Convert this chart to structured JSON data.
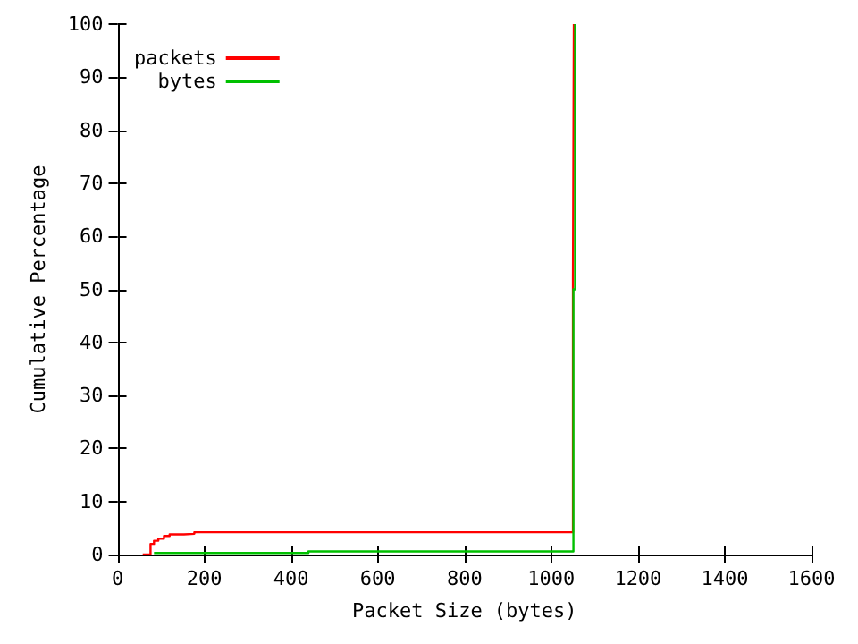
{
  "chart_data": {
    "type": "step",
    "xlabel": "Packet Size (bytes)",
    "ylabel": "Cumulative Percentage",
    "xlim": [
      0,
      1600
    ],
    "xticks": [
      0,
      200,
      400,
      600,
      800,
      1000,
      1200,
      1400,
      1600
    ],
    "ylim": [
      0,
      100
    ],
    "yticks": [
      0,
      10,
      20,
      30,
      40,
      50,
      60,
      70,
      80,
      90,
      100
    ],
    "grid": false,
    "legend": "top left",
    "marker": "none",
    "line_style": "solid",
    "series": [
      {
        "name": "packets",
        "color": "#ff0000",
        "x": [
          58,
          76,
          84,
          94,
          107,
          120,
          153,
          177,
          1050,
          1052
        ],
        "values": [
          0,
          2,
          2.6,
          3,
          3.5,
          3.8,
          3.9,
          4.2,
          51.5,
          100
        ]
      },
      {
        "name": "bytes",
        "color": "#00c000",
        "x": [
          84,
          440,
          1051,
          1055
        ],
        "values": [
          0.3,
          0.6,
          50,
          100
        ]
      }
    ]
  }
}
